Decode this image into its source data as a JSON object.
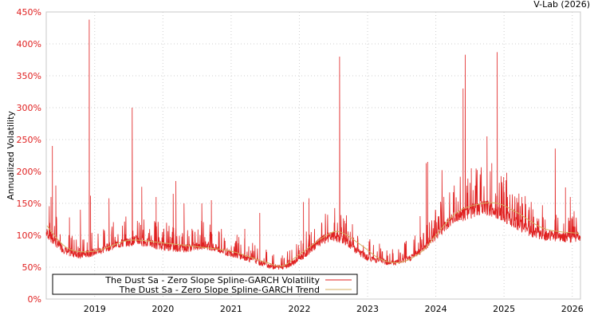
{
  "chart_data": {
    "type": "line",
    "credit": "V-Lab (2026)",
    "ylabel": "Annualized Volatility",
    "xlabel": "",
    "ylim": [
      0,
      450
    ],
    "xlim": [
      2018.29,
      2026.12
    ],
    "grid": true,
    "legend_placement": "bottom-left",
    "y_ticks": [
      "0%",
      "50%",
      "100%",
      "150%",
      "200%",
      "250%",
      "300%",
      "350%",
      "400%",
      "450%"
    ],
    "y_tick_values": [
      0,
      50,
      100,
      150,
      200,
      250,
      300,
      350,
      400,
      450
    ],
    "x_ticks": [
      "2019",
      "2020",
      "2021",
      "2022",
      "2023",
      "2024",
      "2025",
      "2026"
    ],
    "x_tick_values": [
      2019,
      2020,
      2021,
      2022,
      2023,
      2024,
      2025,
      2026
    ],
    "series": [
      {
        "name": "The Dust Sa - Zero Slope Spline-GARCH Volatility",
        "color": "#e02020",
        "base_start": 2018.3,
        "base_step": 0.1,
        "base_values": [
          95,
          85,
          75,
          68,
          65,
          63,
          65,
          68,
          70,
          75,
          78,
          80,
          82,
          85,
          83,
          80,
          78,
          76,
          75,
          74,
          73,
          74,
          76,
          78,
          76,
          72,
          68,
          66,
          63,
          60,
          57,
          53,
          50,
          47,
          46,
          47,
          52,
          58,
          66,
          75,
          82,
          88,
          90,
          88,
          82,
          73,
          65,
          60,
          57,
          55,
          53,
          52,
          54,
          58,
          64,
          72,
          82,
          92,
          102,
          112,
          118,
          122,
          126,
          130,
          132,
          130,
          126,
          120,
          114,
          108,
          102,
          97,
          94,
          92,
          91,
          90,
          89,
          88,
          90
        ],
        "spikes": [
          [
            2018.36,
            160
          ],
          [
            2018.38,
            240
          ],
          [
            2018.43,
            178
          ],
          [
            2018.63,
            128
          ],
          [
            2018.79,
            140
          ],
          [
            2018.92,
            438
          ],
          [
            2018.94,
            162
          ],
          [
            2019.21,
            158
          ],
          [
            2019.55,
            300
          ],
          [
            2019.69,
            176
          ],
          [
            2019.9,
            160
          ],
          [
            2020.15,
            165
          ],
          [
            2020.19,
            185
          ],
          [
            2020.31,
            150
          ],
          [
            2020.57,
            150
          ],
          [
            2020.71,
            155
          ],
          [
            2021.2,
            110
          ],
          [
            2021.42,
            135
          ],
          [
            2022.06,
            152
          ],
          [
            2022.14,
            158
          ],
          [
            2022.59,
            380
          ],
          [
            2023.77,
            130
          ],
          [
            2023.86,
            213
          ],
          [
            2023.88,
            215
          ],
          [
            2024.09,
            202
          ],
          [
            2024.4,
            330
          ],
          [
            2024.43,
            383
          ],
          [
            2024.52,
            205
          ],
          [
            2024.75,
            255
          ],
          [
            2024.82,
            213
          ],
          [
            2024.9,
            387
          ],
          [
            2025.04,
            198
          ],
          [
            2025.26,
            160
          ],
          [
            2025.75,
            236
          ],
          [
            2025.9,
            175
          ],
          [
            2025.97,
            160
          ]
        ]
      },
      {
        "name": "The Dust Sa - Zero Slope Spline-GARCH Trend",
        "color": "#d4b060",
        "points": [
          [
            2018.3,
            115
          ],
          [
            2018.6,
            80
          ],
          [
            2019.0,
            75
          ],
          [
            2019.5,
            92
          ],
          [
            2020.0,
            88
          ],
          [
            2020.5,
            82
          ],
          [
            2021.0,
            75
          ],
          [
            2021.5,
            58
          ],
          [
            2021.75,
            52
          ],
          [
            2022.0,
            70
          ],
          [
            2022.4,
            100
          ],
          [
            2022.6,
            105
          ],
          [
            2022.9,
            85
          ],
          [
            2023.2,
            62
          ],
          [
            2023.5,
            58
          ],
          [
            2023.8,
            75
          ],
          [
            2024.0,
            100
          ],
          [
            2024.3,
            135
          ],
          [
            2024.6,
            148
          ],
          [
            2024.9,
            150
          ],
          [
            2025.2,
            135
          ],
          [
            2025.6,
            110
          ],
          [
            2026.1,
            103
          ]
        ]
      }
    ]
  }
}
